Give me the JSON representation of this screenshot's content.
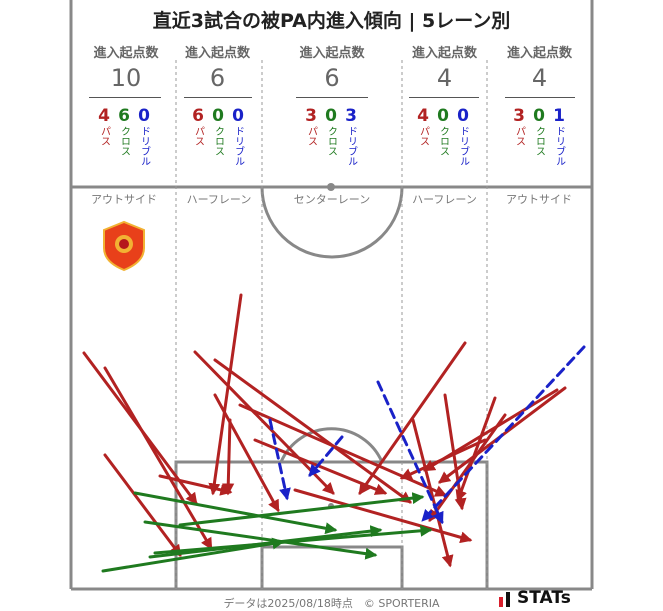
{
  "title": "直近3試合の被PA内進入傾向 | 5レーン別",
  "header_label": "進入起点数",
  "lanes": [
    {
      "name": "アウトサイド",
      "total": "10",
      "pass": "4",
      "cross": "6",
      "dribble": "0"
    },
    {
      "name": "ハーフレーン",
      "total": "6",
      "pass": "6",
      "cross": "0",
      "dribble": "0"
    },
    {
      "name": "センターレーン",
      "total": "6",
      "pass": "3",
      "cross": "0",
      "dribble": "3"
    },
    {
      "name": "ハーフレーン",
      "total": "4",
      "pass": "4",
      "cross": "0",
      "dribble": "0"
    },
    {
      "name": "アウトサイド",
      "total": "4",
      "pass": "3",
      "cross": "0",
      "dribble": "1"
    }
  ],
  "type_labels": {
    "pass": "パス",
    "cross": "クロス",
    "dribble": "ドリブル"
  },
  "colors": {
    "pass": "#b22222",
    "cross": "#1f7a1f",
    "dribble": "#1a22c8",
    "pitch_line": "#888888"
  },
  "footer": "データは2025/08/18時点　© SPORTERIA",
  "brand": "STATs"
}
